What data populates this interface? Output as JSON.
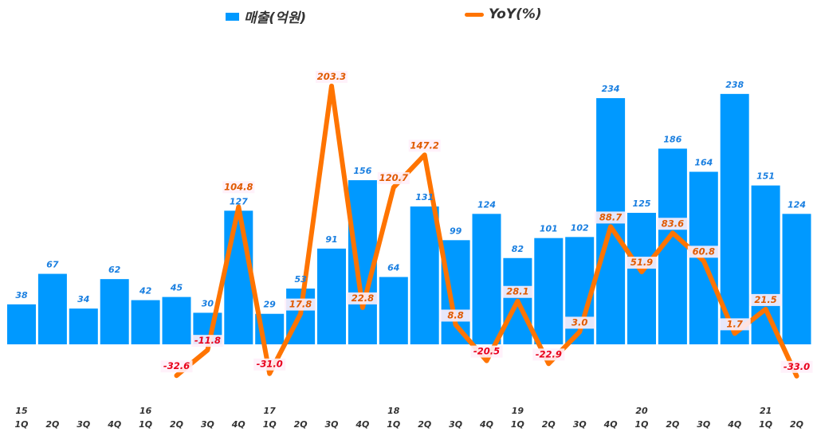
{
  "chart_data": {
    "type": "bar",
    "legend": {
      "position": "top",
      "bar_series": "매출(억원)",
      "line_series": "YoY(%)"
    },
    "categories": [
      "1Q",
      "2Q",
      "3Q",
      "4Q",
      "1Q",
      "2Q",
      "3Q",
      "4Q",
      "1Q",
      "2Q",
      "3Q",
      "4Q",
      "1Q",
      "2Q",
      "3Q",
      "4Q",
      "1Q",
      "2Q",
      "3Q",
      "4Q",
      "1Q",
      "2Q",
      "3Q",
      "4Q",
      "1Q",
      "2Q"
    ],
    "years": [
      "15",
      "",
      "",
      "",
      "16",
      "",
      "",
      "",
      "17",
      "",
      "",
      "",
      "18",
      "",
      "",
      "",
      "19",
      "",
      "",
      "",
      "20",
      "",
      "",
      "",
      "21",
      ""
    ],
    "series": [
      {
        "name": "매출(억원)",
        "type": "bar",
        "color": "#0099ff",
        "values": [
          38,
          67,
          34,
          62,
          42,
          45,
          30,
          127,
          29,
          53,
          91,
          156,
          64,
          131,
          99,
          124,
          82,
          101,
          102,
          234,
          125,
          186,
          164,
          238,
          151,
          124
        ]
      },
      {
        "name": "YoY(%)",
        "type": "line",
        "color": "#ff7400",
        "values": [
          null,
          null,
          null,
          null,
          null,
          -32.6,
          -11.8,
          104.8,
          -31.0,
          17.8,
          203.3,
          22.8,
          120.7,
          147.2,
          8.8,
          -20.5,
          28.1,
          -22.9,
          3.0,
          88.7,
          51.9,
          83.6,
          60.8,
          1.7,
          21.5,
          -33.0
        ]
      }
    ],
    "grid": false
  }
}
